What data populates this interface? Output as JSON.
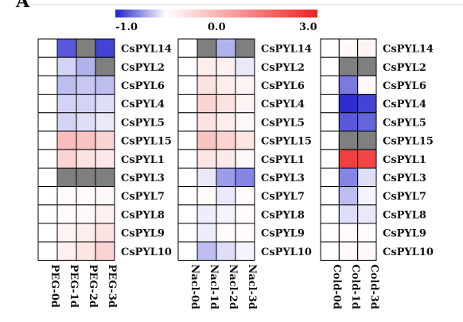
{
  "panel_letter": "A",
  "chart_data": {
    "type": "heatmap",
    "colorbar": {
      "min": -1.0,
      "mid": 0.0,
      "max": 3.0,
      "tick_labels": [
        "-1.0",
        "0.0",
        "3.0"
      ],
      "color_min": "#2222cc",
      "color_mid": "#ffffff",
      "color_max": "#ee2222"
    },
    "missing_color": "#7f7f7f",
    "rows": [
      "CsPYL14",
      "CsPYL2",
      "CsPYL6",
      "CsPYL4",
      "CsPYL5",
      "CsPYL15",
      "CsPYL1",
      "CsPYL3",
      "CsPYL7",
      "CsPYL8",
      "CsPYL9",
      "CsPYL10"
    ],
    "panels": [
      {
        "columns": [
          "PEG-0d",
          "PEG-1d",
          "PEG-2d",
          "PEG-3d"
        ],
        "values": [
          [
            0,
            -0.75,
            null,
            -0.85
          ],
          [
            0,
            -0.2,
            -0.35,
            null
          ],
          [
            0,
            -0.3,
            -0.25,
            -0.3
          ],
          [
            0,
            -0.2,
            -0.2,
            -0.15
          ],
          [
            0,
            -0.2,
            -0.15,
            -0.1
          ],
          [
            0,
            0.9,
            0.8,
            0.6
          ],
          [
            0,
            0.6,
            0.4,
            0.3
          ],
          [
            0,
            null,
            null,
            null
          ],
          [
            0,
            0.05,
            0.05,
            0.1
          ],
          [
            0,
            0.05,
            0.1,
            0.2
          ],
          [
            0,
            0.15,
            0.25,
            0.4
          ],
          [
            0,
            0.2,
            0.35,
            0.6
          ]
        ]
      },
      {
        "columns": [
          "Nacl-0d",
          "Nacl-1d",
          "Nacl-2d",
          "Nacl-3d"
        ],
        "values": [
          [
            0,
            null,
            -0.35,
            null
          ],
          [
            0,
            0.25,
            0.2,
            -0.1
          ],
          [
            0,
            0.4,
            0.25,
            0.15
          ],
          [
            0,
            0.6,
            0.4,
            0.15
          ],
          [
            0,
            0.4,
            0.25,
            0.1
          ],
          [
            0,
            0.8,
            0.6,
            0.35
          ],
          [
            0,
            0.35,
            0.3,
            0.1
          ],
          [
            0,
            -0.1,
            -0.45,
            -0.55
          ],
          [
            0,
            0.05,
            -0.1,
            0.05
          ],
          [
            0,
            -0.08,
            -0.05,
            0.05
          ],
          [
            0,
            -0.08,
            0.05,
            0.05
          ],
          [
            0,
            -0.3,
            -0.15,
            -0.05
          ]
        ]
      },
      {
        "columns": [
          "Cold-0d",
          "Cold-1d",
          "Cold-3d"
        ],
        "values": [
          [
            0,
            0.1,
            0.15
          ],
          [
            0,
            null,
            null
          ],
          [
            0,
            -0.6,
            0.1
          ],
          [
            0,
            -0.95,
            -0.85
          ],
          [
            0,
            -0.75,
            -0.7
          ],
          [
            0,
            null,
            null
          ],
          [
            0,
            2.6,
            2.5
          ],
          [
            0,
            -0.55,
            -0.15
          ],
          [
            0,
            -0.3,
            -0.05
          ],
          [
            0,
            -0.15,
            -0.1
          ],
          [
            0,
            0.05,
            0.05
          ],
          [
            0,
            0.08,
            0.1
          ]
        ]
      }
    ]
  }
}
